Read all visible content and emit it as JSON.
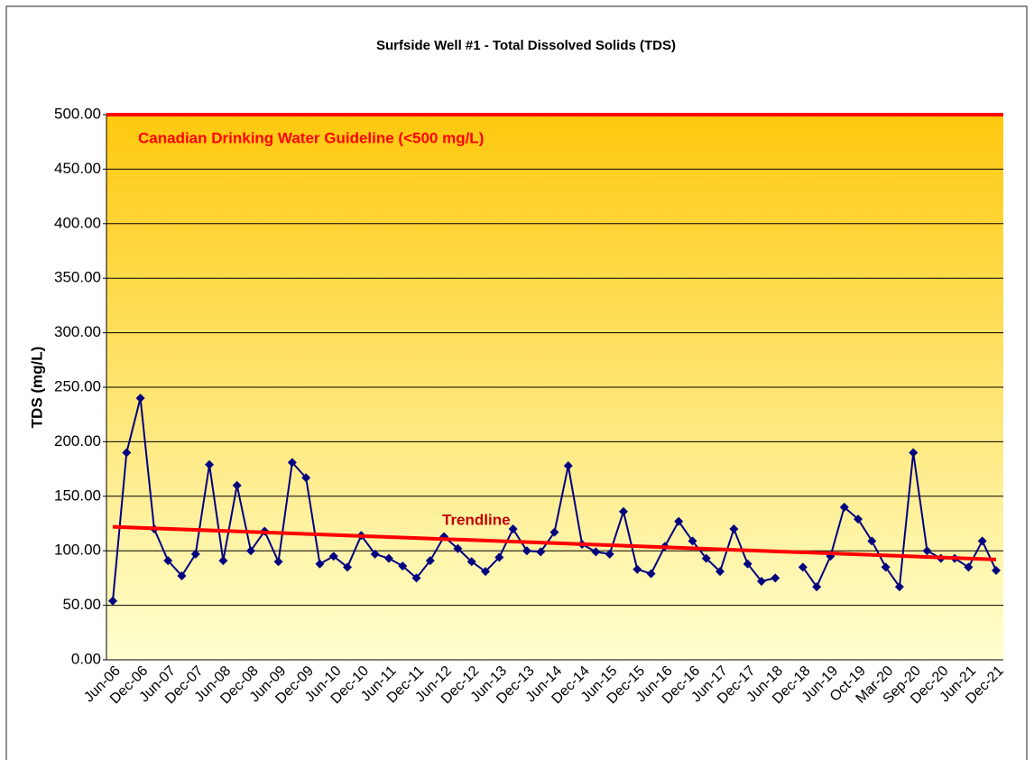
{
  "chart_data": {
    "type": "line",
    "title": "Surfside Well #1 - Total Dissolved Solids (TDS)",
    "ylabel": "TDS (mg/L)",
    "categories": [
      "Jun-06",
      null,
      "Dec-06",
      null,
      "Jun-07",
      null,
      "Dec-07",
      null,
      "Jun-08",
      null,
      "Dec-08",
      null,
      "Jun-09",
      null,
      "Dec-09",
      null,
      "Jun-10",
      null,
      "Dec-10",
      null,
      "Jun-11",
      null,
      "Dec-11",
      null,
      "Jun-12",
      null,
      "Dec-12",
      null,
      "Jun-13",
      null,
      "Dec-13",
      null,
      "Jun-14",
      null,
      "Dec-14",
      null,
      "Jun-15",
      null,
      "Dec-15",
      null,
      "Jun-16",
      null,
      "Dec-16",
      null,
      "Jun-17",
      null,
      "Dec-17",
      null,
      "Jun-18",
      null,
      "Dec-18",
      null,
      "Jun-19",
      null,
      "Oct-19",
      null,
      "Mar-20",
      null,
      "Sep-20",
      null,
      "Dec-20",
      null,
      "Jun-21",
      null,
      "Dec-21"
    ],
    "series": [
      {
        "name": "TDS",
        "color": "#000080",
        "values": [
          54,
          190,
          240,
          120,
          91,
          77,
          97,
          179,
          91,
          160,
          100,
          118,
          90,
          181,
          167,
          88,
          95,
          85,
          114,
          97,
          93,
          86,
          75,
          91,
          113,
          102,
          90,
          81,
          94,
          120,
          100,
          99,
          117,
          178,
          106,
          99,
          97,
          136,
          83,
          79,
          104,
          127,
          109,
          93,
          81,
          120,
          88,
          72,
          75,
          null,
          85,
          67,
          95,
          140,
          129,
          109,
          85,
          67,
          190,
          100,
          93,
          93,
          85,
          109,
          82
        ]
      }
    ],
    "trendline": {
      "label": "Trendline",
      "start": 122,
      "end": 92,
      "color": "#ff0000"
    },
    "guideline": {
      "label": "Canadian Drinking Water Guideline (<500 mg/L)",
      "value": 500,
      "color": "#ff0000"
    },
    "ylim": [
      0,
      500
    ],
    "yticks": [
      {
        "value": 0,
        "label": "0.00"
      },
      {
        "value": 50,
        "label": "50.00"
      },
      {
        "value": 100,
        "label": "100.00"
      },
      {
        "value": 150,
        "label": "150.00"
      },
      {
        "value": 200,
        "label": "200.00"
      },
      {
        "value": 250,
        "label": "250.00"
      },
      {
        "value": 300,
        "label": "300.00"
      },
      {
        "value": 350,
        "label": "350.00"
      },
      {
        "value": 400,
        "label": "400.00"
      },
      {
        "value": 450,
        "label": "450.00"
      },
      {
        "value": 500,
        "label": "500.00"
      }
    ],
    "grid": true
  }
}
